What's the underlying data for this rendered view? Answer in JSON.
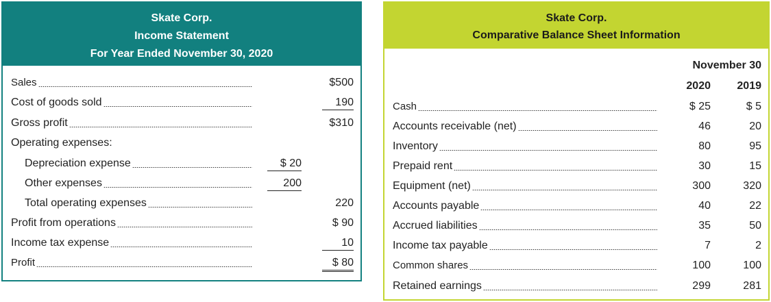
{
  "income_statement": {
    "title": "Skate Corp.",
    "subtitle": "Income Statement",
    "period": "For Year Ended November 30, 2020",
    "rows": [
      {
        "label": "Sales",
        "col1": "",
        "col2": "$500"
      },
      {
        "label": "Cost of goods sold",
        "col1": "",
        "col2": "190"
      },
      {
        "label": "Gross profit",
        "col1": "",
        "col2": "$310"
      },
      {
        "label": "Operating expenses:",
        "col1": "",
        "col2": ""
      },
      {
        "label": "Depreciation expense",
        "col1": "$ 20",
        "col2": ""
      },
      {
        "label": "Other expenses",
        "col1": "200",
        "col2": ""
      },
      {
        "label": "Total operating expenses",
        "col1": "",
        "col2": "220"
      },
      {
        "label": "Profit from operations",
        "col1": "",
        "col2": "$ 90"
      },
      {
        "label": "Income tax expense",
        "col1": "",
        "col2": "10"
      },
      {
        "label": "Profit",
        "col1": "",
        "col2": "$ 80"
      }
    ]
  },
  "balance_sheet": {
    "title": "Skate Corp.",
    "subtitle": "Comparative Balance Sheet Information",
    "date_header": "November 30",
    "years": [
      "2020",
      "2019"
    ],
    "rows": [
      {
        "label": "Cash",
        "y2020": "$ 25",
        "y2019": "$ 5"
      },
      {
        "label": "Accounts receivable (net)",
        "y2020": "46",
        "y2019": "20"
      },
      {
        "label": "Inventory",
        "y2020": "80",
        "y2019": "95"
      },
      {
        "label": "Prepaid rent",
        "y2020": "30",
        "y2019": "15"
      },
      {
        "label": "Equipment (net)",
        "y2020": "300",
        "y2019": "320"
      },
      {
        "label": "Accounts payable",
        "y2020": "40",
        "y2019": "22"
      },
      {
        "label": "Accrued liabilities",
        "y2020": "35",
        "y2019": "50"
      },
      {
        "label": "Income tax payable",
        "y2020": "7",
        "y2019": "2"
      },
      {
        "label": "Common shares",
        "y2020": "100",
        "y2019": "100"
      },
      {
        "label": "Retained earnings",
        "y2020": "299",
        "y2019": "281"
      }
    ]
  }
}
